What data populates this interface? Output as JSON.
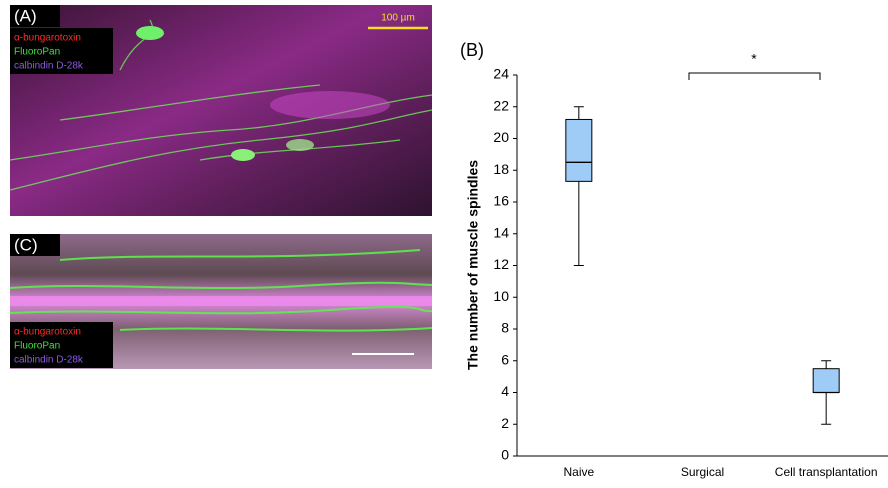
{
  "panels": [
    {
      "label": "(A)",
      "legend": [
        "α-bungarotoxin",
        "FluoroPan",
        "calbindin D-28k"
      ],
      "scale_bar": "100 µm"
    },
    {
      "label": "(C)",
      "legend": [
        "α-bungarotoxin",
        "FluoroPan",
        "calbindin D-28k"
      ]
    }
  ],
  "chart_data": {
    "type": "box",
    "title": "(B)",
    "y_label": "The number of muscle spindles",
    "categories": [
      "Naive",
      "Surgical",
      "Cell transplantation"
    ],
    "boxes": [
      {
        "min": 12,
        "q1": 17.3,
        "median": 18.5,
        "q3": 21.2,
        "max": 22
      },
      null,
      {
        "min": 2,
        "q1": 4,
        "median": 4,
        "q3": 5.5,
        "max": 6
      }
    ],
    "color": "#9fcbf7",
    "ylim": [
      0,
      24
    ],
    "yticks": [
      0,
      2,
      4,
      6,
      8,
      10,
      12,
      14,
      16,
      18,
      20,
      22,
      24
    ],
    "annotation": "*"
  }
}
